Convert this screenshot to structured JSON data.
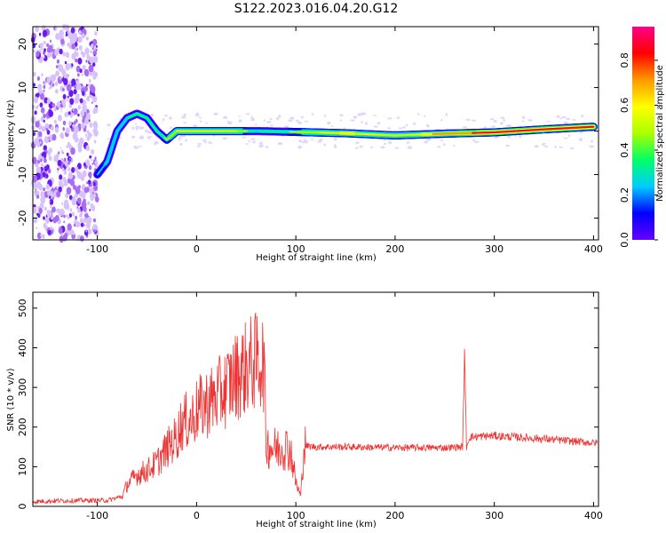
{
  "figure_title": "S122.2023.016.04.20.G12",
  "chart_data": [
    {
      "type": "heatmap",
      "title": "",
      "xlabel": "Height of straight line (km)",
      "ylabel": "Frequency (Hz)",
      "xlim": [
        -165,
        405
      ],
      "ylim": [
        -25,
        24
      ],
      "xticks": [
        -100,
        0,
        100,
        200,
        300,
        400
      ],
      "yticks": [
        20,
        10,
        0,
        -10,
        -20
      ],
      "colorbar": {
        "label": "Normalized spectral amplitude",
        "range": [
          0,
          0.95
        ],
        "ticks": [
          "0.0",
          "0.2",
          "0.4",
          "0.6",
          "0.8"
        ],
        "tick_values": [
          0,
          0.2,
          0.4,
          0.6,
          0.8
        ],
        "colors": [
          "#6600ff",
          "#0000ff",
          "#00ccff",
          "#00ff66",
          "#aaff00",
          "#ffff00",
          "#ff9900",
          "#ff0000",
          "#ff0088"
        ]
      },
      "ridge": {
        "height_km": [
          -100,
          -90,
          -80,
          -70,
          -60,
          -50,
          -40,
          -30,
          -20,
          0,
          20,
          40,
          50,
          60,
          100,
          150,
          200,
          250,
          300,
          350,
          400
        ],
        "frequency_hz": [
          -10,
          -7,
          0,
          3,
          4,
          3,
          0,
          -2,
          0,
          0,
          0,
          0,
          0,
          0,
          -0.2,
          -0.5,
          -1,
          -0.6,
          -0.3,
          0.4,
          1
        ],
        "amplitude": [
          0.3,
          0.35,
          0.35,
          0.35,
          0.45,
          0.4,
          0.4,
          0.5,
          0.6,
          0.6,
          0.6,
          0.6,
          0.5,
          0.35,
          0.5,
          0.7,
          0.6,
          0.75,
          0.9,
          0.95,
          0.9
        ]
      }
    },
    {
      "type": "line",
      "title": "",
      "xlabel": "Height of straight line (km)",
      "ylabel": "SNR (10 * v/v)",
      "xlim": [
        -165,
        405
      ],
      "ylim": [
        0,
        540
      ],
      "xticks": [
        -100,
        0,
        100,
        200,
        300,
        400
      ],
      "yticks": [
        0,
        100,
        200,
        300,
        400,
        500
      ],
      "series": [
        {
          "color": "#ee3333",
          "x": [
            -165,
            -140,
            -110,
            -90,
            -75,
            -70,
            -60,
            -50,
            -40,
            -30,
            -20,
            -15,
            -10,
            -5,
            0,
            10,
            20,
            30,
            40,
            50,
            55,
            60,
            65,
            68,
            70,
            75,
            80,
            90,
            95,
            100,
            105,
            108,
            110,
            120,
            150,
            200,
            250,
            268,
            270,
            272,
            275,
            300,
            350,
            400
          ],
          "y": [
            12,
            14,
            15,
            15,
            25,
            55,
            80,
            90,
            110,
            145,
            175,
            210,
            215,
            220,
            240,
            260,
            275,
            300,
            330,
            350,
            360,
            365,
            370,
            360,
            160,
            150,
            145,
            150,
            140,
            60,
            25,
            150,
            152,
            150,
            150,
            148,
            148,
            150,
            380,
            150,
            175,
            178,
            170,
            160
          ]
        }
      ]
    }
  ]
}
